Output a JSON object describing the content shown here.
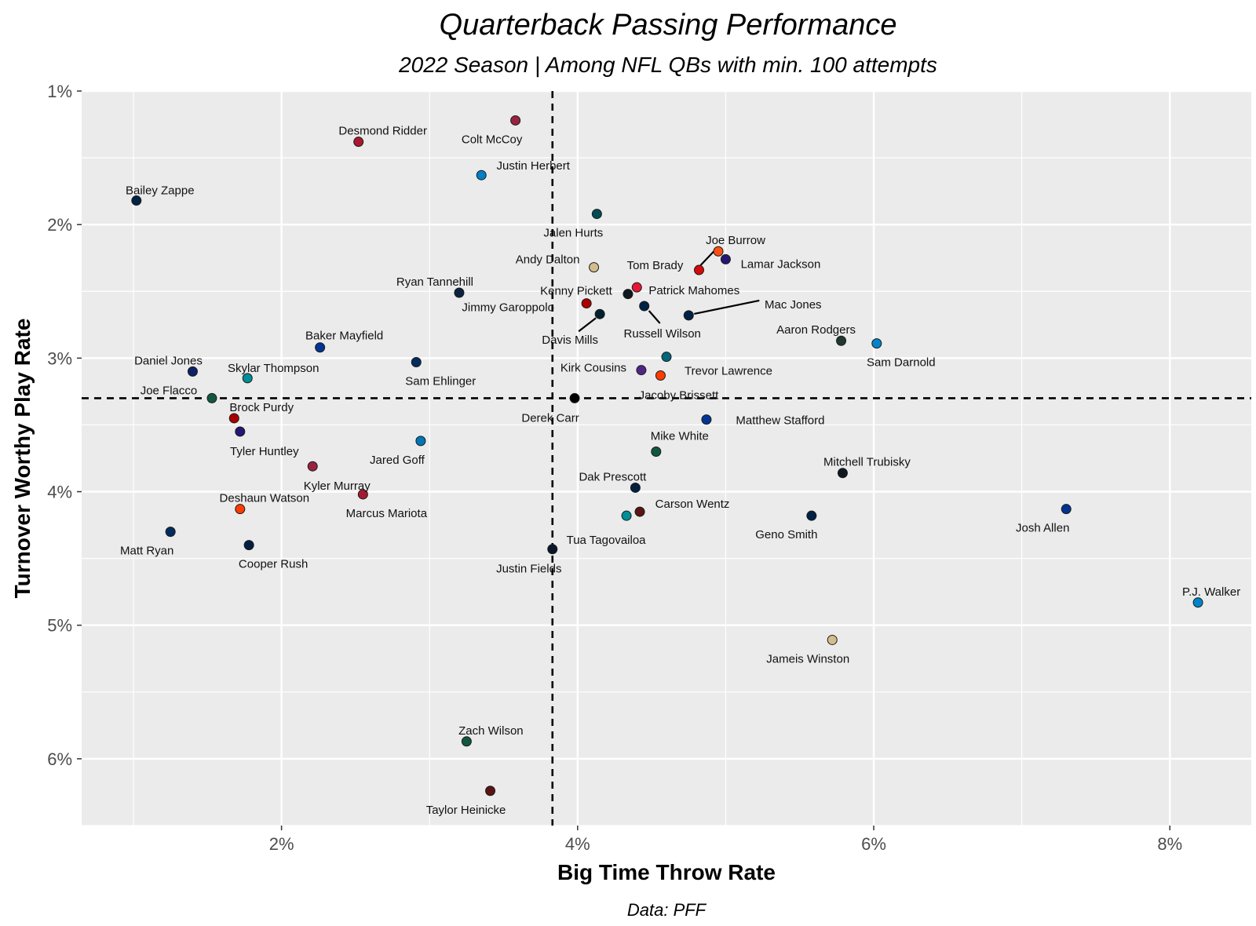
{
  "chart_data": {
    "type": "scatter",
    "title": "Quarterback Passing Performance",
    "subtitle": "2022 Season | Among NFL QBs with min. 100 attempts",
    "xlabel": "Big Time Throw Rate",
    "ylabel": "Turnover Worthy Play Rate",
    "caption": "Data: PFF",
    "xlim": [
      0.65,
      8.55
    ],
    "ylim": [
      1.0,
      6.5
    ],
    "y_reversed": true,
    "x_ticks": [
      2,
      4,
      6,
      8
    ],
    "y_ticks": [
      1,
      2,
      3,
      4,
      5,
      6
    ],
    "x_tick_labels": [
      "2%",
      "4%",
      "6%",
      "8%"
    ],
    "y_tick_labels": [
      "1%",
      "2%",
      "3%",
      "4%",
      "5%",
      "6%"
    ],
    "reference_lines": {
      "x": 3.83,
      "y": 3.3
    },
    "grid": true,
    "points": [
      {
        "name": "Colt McCoy",
        "x": 3.58,
        "y": 1.22,
        "color": "#97233F"
      },
      {
        "name": "Desmond Ridder",
        "x": 2.52,
        "y": 1.38,
        "color": "#A71930"
      },
      {
        "name": "Justin Herbert",
        "x": 3.35,
        "y": 1.63,
        "color": "#0080C6"
      },
      {
        "name": "Bailey Zappe",
        "x": 1.02,
        "y": 1.82,
        "color": "#002244"
      },
      {
        "name": "Jalen Hurts",
        "x": 4.13,
        "y": 1.92,
        "color": "#004C54"
      },
      {
        "name": "Joe Burrow",
        "x": 4.95,
        "y": 2.2,
        "color": "#FB4F14"
      },
      {
        "name": "Lamar Jackson",
        "x": 5.0,
        "y": 2.26,
        "color": "#241773"
      },
      {
        "name": "Andy Dalton",
        "x": 4.11,
        "y": 2.32,
        "color": "#D3BC8D"
      },
      {
        "name": "Tom Brady",
        "x": 4.82,
        "y": 2.34,
        "color": "#D50A0A"
      },
      {
        "name": "Patrick Mahomes",
        "x": 4.4,
        "y": 2.47,
        "color": "#E31837"
      },
      {
        "name": "Ryan Tannehill",
        "x": 3.2,
        "y": 2.51,
        "color": "#0C2340"
      },
      {
        "name": "Kenny Pickett",
        "x": 4.34,
        "y": 2.52,
        "color": "#101820"
      },
      {
        "name": "Jimmy Garoppolo",
        "x": 4.06,
        "y": 2.59,
        "color": "#AA0000"
      },
      {
        "name": "Russell Wilson",
        "x": 4.45,
        "y": 2.61,
        "color": "#002244"
      },
      {
        "name": "Davis Mills",
        "x": 4.15,
        "y": 2.67,
        "color": "#03202F"
      },
      {
        "name": "Mac Jones",
        "x": 4.75,
        "y": 2.68,
        "color": "#002244"
      },
      {
        "name": "Aaron Rodgers",
        "x": 5.78,
        "y": 2.87,
        "color": "#203731"
      },
      {
        "name": "Sam Darnold",
        "x": 6.02,
        "y": 2.89,
        "color": "#0085CA"
      },
      {
        "name": "Baker Mayfield",
        "x": 2.26,
        "y": 2.92,
        "color": "#003594"
      },
      {
        "name": "Trevor Lawrence",
        "x": 4.6,
        "y": 2.99,
        "color": "#006778"
      },
      {
        "name": "Sam Ehlinger",
        "x": 2.91,
        "y": 3.03,
        "color": "#002C5F"
      },
      {
        "name": "Daniel Jones",
        "x": 1.4,
        "y": 3.1,
        "color": "#0B2265"
      },
      {
        "name": "Kirk Cousins",
        "x": 4.43,
        "y": 3.09,
        "color": "#4F2683"
      },
      {
        "name": "Jacoby Brissett",
        "x": 4.56,
        "y": 3.13,
        "color": "#FF3C00"
      },
      {
        "name": "Skylar Thompson",
        "x": 1.77,
        "y": 3.15,
        "color": "#008E97"
      },
      {
        "name": "Joe Flacco",
        "x": 1.53,
        "y": 3.3,
        "color": "#125740"
      },
      {
        "name": "Derek Carr",
        "x": 3.98,
        "y": 3.3,
        "color": "#000000"
      },
      {
        "name": "Brock Purdy",
        "x": 1.68,
        "y": 3.45,
        "color": "#AA0000"
      },
      {
        "name": "Matthew Stafford",
        "x": 4.87,
        "y": 3.46,
        "color": "#003594"
      },
      {
        "name": "Tyler Huntley",
        "x": 1.72,
        "y": 3.55,
        "color": "#241773"
      },
      {
        "name": "Jared Goff",
        "x": 2.94,
        "y": 3.62,
        "color": "#0076B6"
      },
      {
        "name": "Mike White",
        "x": 4.53,
        "y": 3.7,
        "color": "#125740"
      },
      {
        "name": "Kyler Murray",
        "x": 2.21,
        "y": 3.81,
        "color": "#97233F"
      },
      {
        "name": "Mitchell Trubisky",
        "x": 5.79,
        "y": 3.86,
        "color": "#101820"
      },
      {
        "name": "Dak Prescott",
        "x": 4.39,
        "y": 3.97,
        "color": "#041E42"
      },
      {
        "name": "Marcus Mariota",
        "x": 2.55,
        "y": 4.02,
        "color": "#A71930"
      },
      {
        "name": "Deshaun Watson",
        "x": 1.72,
        "y": 4.13,
        "color": "#FF3C00"
      },
      {
        "name": "Josh Allen",
        "x": 7.3,
        "y": 4.13,
        "color": "#00338D"
      },
      {
        "name": "Carson Wentz",
        "x": 4.42,
        "y": 4.15,
        "color": "#5A1414"
      },
      {
        "name": "Tua Tagovailoa",
        "x": 4.33,
        "y": 4.18,
        "color": "#008E97"
      },
      {
        "name": "Geno Smith",
        "x": 5.58,
        "y": 4.18,
        "color": "#002244"
      },
      {
        "name": "Matt Ryan",
        "x": 1.25,
        "y": 4.3,
        "color": "#002C5F"
      },
      {
        "name": "Cooper Rush",
        "x": 1.78,
        "y": 4.4,
        "color": "#041E42"
      },
      {
        "name": "Justin Fields",
        "x": 3.83,
        "y": 4.43,
        "color": "#0B162A"
      },
      {
        "name": "P.J. Walker",
        "x": 8.19,
        "y": 4.83,
        "color": "#0085CA"
      },
      {
        "name": "Jameis Winston",
        "x": 5.72,
        "y": 5.11,
        "color": "#D3BC8D"
      },
      {
        "name": "Zach Wilson",
        "x": 3.25,
        "y": 5.87,
        "color": "#125740"
      },
      {
        "name": "Taylor Heinicke",
        "x": 3.41,
        "y": 6.24,
        "color": "#5A1414"
      }
    ]
  }
}
